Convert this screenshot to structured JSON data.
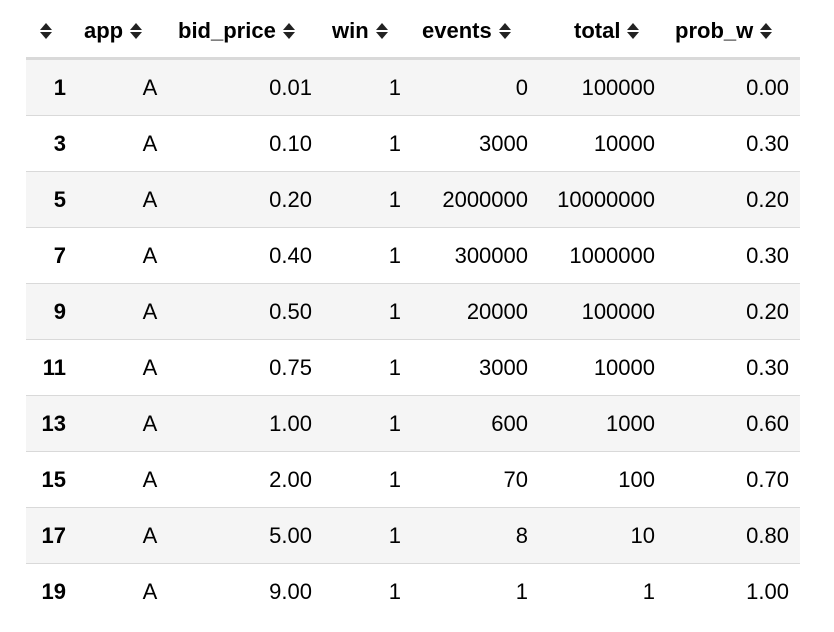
{
  "columns": {
    "app": "app",
    "bid_price": "bid_price",
    "win": "win",
    "events": "events",
    "total": "total",
    "prob_w": "prob_w"
  },
  "rows": [
    {
      "index": "1",
      "app": "A",
      "bid_price": "0.01",
      "win": "1",
      "events": "0",
      "total": "100000",
      "prob_w": "0.00"
    },
    {
      "index": "3",
      "app": "A",
      "bid_price": "0.10",
      "win": "1",
      "events": "3000",
      "total": "10000",
      "prob_w": "0.30"
    },
    {
      "index": "5",
      "app": "A",
      "bid_price": "0.20",
      "win": "1",
      "events": "2000000",
      "total": "10000000",
      "prob_w": "0.20"
    },
    {
      "index": "7",
      "app": "A",
      "bid_price": "0.40",
      "win": "1",
      "events": "300000",
      "total": "1000000",
      "prob_w": "0.30"
    },
    {
      "index": "9",
      "app": "A",
      "bid_price": "0.50",
      "win": "1",
      "events": "20000",
      "total": "100000",
      "prob_w": "0.20"
    },
    {
      "index": "11",
      "app": "A",
      "bid_price": "0.75",
      "win": "1",
      "events": "3000",
      "total": "10000",
      "prob_w": "0.30"
    },
    {
      "index": "13",
      "app": "A",
      "bid_price": "1.00",
      "win": "1",
      "events": "600",
      "total": "1000",
      "prob_w": "0.60"
    },
    {
      "index": "15",
      "app": "A",
      "bid_price": "2.00",
      "win": "1",
      "events": "70",
      "total": "100",
      "prob_w": "0.70"
    },
    {
      "index": "17",
      "app": "A",
      "bid_price": "5.00",
      "win": "1",
      "events": "8",
      "total": "10",
      "prob_w": "0.80"
    },
    {
      "index": "19",
      "app": "A",
      "bid_price": "9.00",
      "win": "1",
      "events": "1",
      "total": "1",
      "prob_w": "1.00"
    }
  ],
  "icons": {
    "sort": "sort-both-icon"
  },
  "colors": {
    "stripe": "#f5f5f5",
    "border": "#d9d9d9",
    "header_border": "#d9d9d9"
  }
}
